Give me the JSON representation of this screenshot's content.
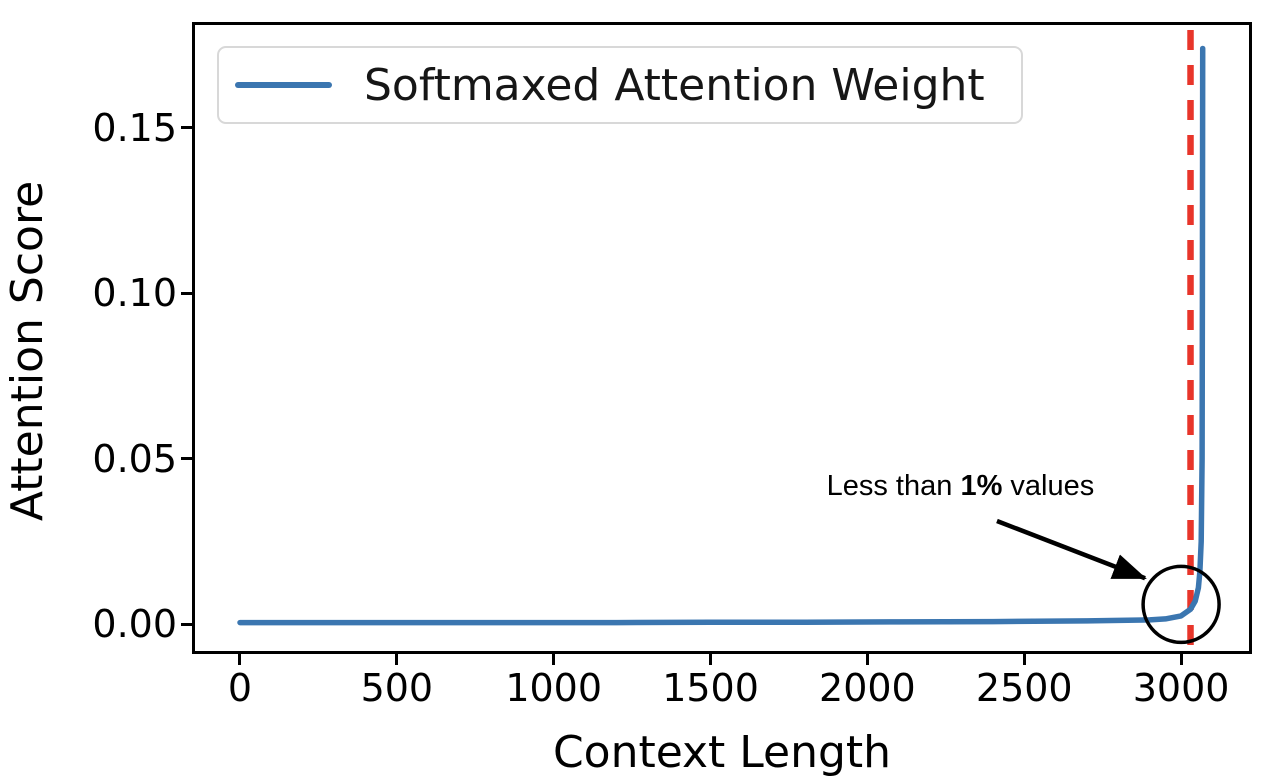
{
  "colors": {
    "line_blue": "#3b76b0",
    "dash_red": "#e8352a",
    "axis_black": "#000000",
    "legend_border": "#d8d8d8"
  },
  "chart_data": {
    "type": "line",
    "title": "",
    "xlabel": "Context Length",
    "ylabel": "Attention Score",
    "xlim": [
      -153,
      3226
    ],
    "ylim": [
      -0.009,
      0.182
    ],
    "x_ticks": [
      0,
      500,
      1000,
      1500,
      2000,
      2500,
      3000
    ],
    "y_ticks": [
      "0.00",
      "0.05",
      "0.10",
      "0.15"
    ],
    "grid": false,
    "legend": {
      "position": "upper-left",
      "label": "Softmaxed Attention Weight"
    },
    "series": [
      {
        "name": "Softmaxed Attention Weight",
        "color": "#3b76b0",
        "points": [
          [
            0,
            0.0005
          ],
          [
            300,
            0.0005
          ],
          [
            600,
            0.0005
          ],
          [
            900,
            0.0005
          ],
          [
            1200,
            0.0005
          ],
          [
            1500,
            0.0006
          ],
          [
            1800,
            0.0006
          ],
          [
            2100,
            0.0007
          ],
          [
            2400,
            0.0008
          ],
          [
            2700,
            0.001
          ],
          [
            2900,
            0.0013
          ],
          [
            2950,
            0.0016
          ],
          [
            3000,
            0.0025
          ],
          [
            3030,
            0.0045
          ],
          [
            3045,
            0.007
          ],
          [
            3055,
            0.011
          ],
          [
            3060,
            0.016
          ],
          [
            3064,
            0.025
          ],
          [
            3067,
            0.05
          ],
          [
            3068,
            0.1
          ],
          [
            3069,
            0.174
          ]
        ]
      }
    ],
    "vline": {
      "x": 3030,
      "color": "#e8352a",
      "style": "dashed"
    },
    "annotation": {
      "prefix": "Less than ",
      "bold": "1%",
      "suffix": " values",
      "text_pos": [
        1870,
        0.047
      ],
      "arrow_from": [
        2413,
        0.0312
      ],
      "arrow_to": [
        2885,
        0.0139
      ],
      "circle_center": [
        3000,
        0.006
      ],
      "circle_radius_px": 38
    }
  }
}
